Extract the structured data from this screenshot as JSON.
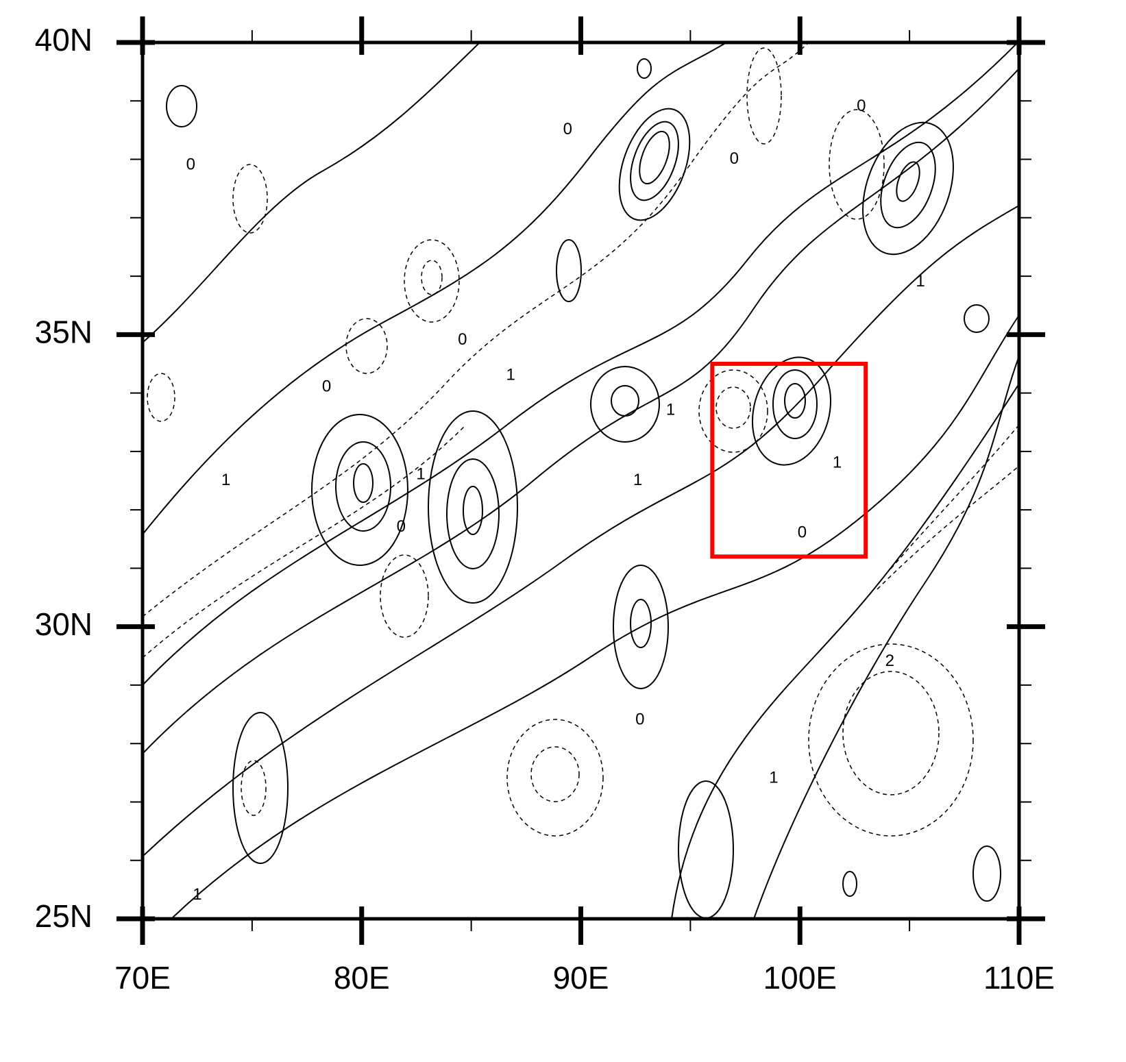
{
  "map": {
    "type": "contour",
    "xlim": [
      70,
      110
    ],
    "ylim": [
      25,
      40
    ],
    "xticks": [
      {
        "value": 70,
        "label": "70E"
      },
      {
        "value": 80,
        "label": "80E"
      },
      {
        "value": 90,
        "label": "90E"
      },
      {
        "value": 100,
        "label": "100E"
      },
      {
        "value": 110,
        "label": "110E"
      }
    ],
    "yticks": [
      {
        "value": 25,
        "label": "25N"
      },
      {
        "value": 30,
        "label": "30N"
      },
      {
        "value": 35,
        "label": "35N"
      },
      {
        "value": 40,
        "label": "40N"
      }
    ],
    "xminor": [
      75,
      85,
      95,
      105
    ],
    "yminor": [
      26,
      27,
      28,
      29,
      31,
      32,
      33,
      34,
      36,
      37,
      38,
      39
    ],
    "highlight_box": {
      "color": "#ff0000",
      "lon": [
        96,
        103
      ],
      "lat": [
        31.2,
        34.5
      ]
    },
    "contour_labels": [
      {
        "level": 0,
        "lon": 89.4,
        "lat": 38.5
      },
      {
        "level": 0,
        "lon": 72.2,
        "lat": 37.9
      },
      {
        "level": 0,
        "lon": 97.0,
        "lat": 38.0
      },
      {
        "level": 0,
        "lon": 102.8,
        "lat": 38.9
      },
      {
        "level": 0,
        "lon": 84.6,
        "lat": 34.9
      },
      {
        "level": 0,
        "lon": 78.4,
        "lat": 34.1
      },
      {
        "level": 1,
        "lon": 86.8,
        "lat": 34.3
      },
      {
        "level": 1,
        "lon": 94.1,
        "lat": 33.7
      },
      {
        "level": 1,
        "lon": 105.5,
        "lat": 35.9
      },
      {
        "level": 1,
        "lon": 82.7,
        "lat": 32.6
      },
      {
        "level": 1,
        "lon": 73.8,
        "lat": 32.5
      },
      {
        "level": 1,
        "lon": 92.6,
        "lat": 32.5
      },
      {
        "level": 1,
        "lon": 101.7,
        "lat": 32.8
      },
      {
        "level": 0,
        "lon": 81.8,
        "lat": 31.7
      },
      {
        "level": 0,
        "lon": 100.1,
        "lat": 31.6
      },
      {
        "level": 0,
        "lon": 92.7,
        "lat": 28.4
      },
      {
        "level": 2,
        "lon": 104.1,
        "lat": 29.4
      },
      {
        "level": 1,
        "lon": 98.8,
        "lat": 27.4
      },
      {
        "level": 1,
        "lon": 72.5,
        "lat": 25.4
      }
    ]
  }
}
